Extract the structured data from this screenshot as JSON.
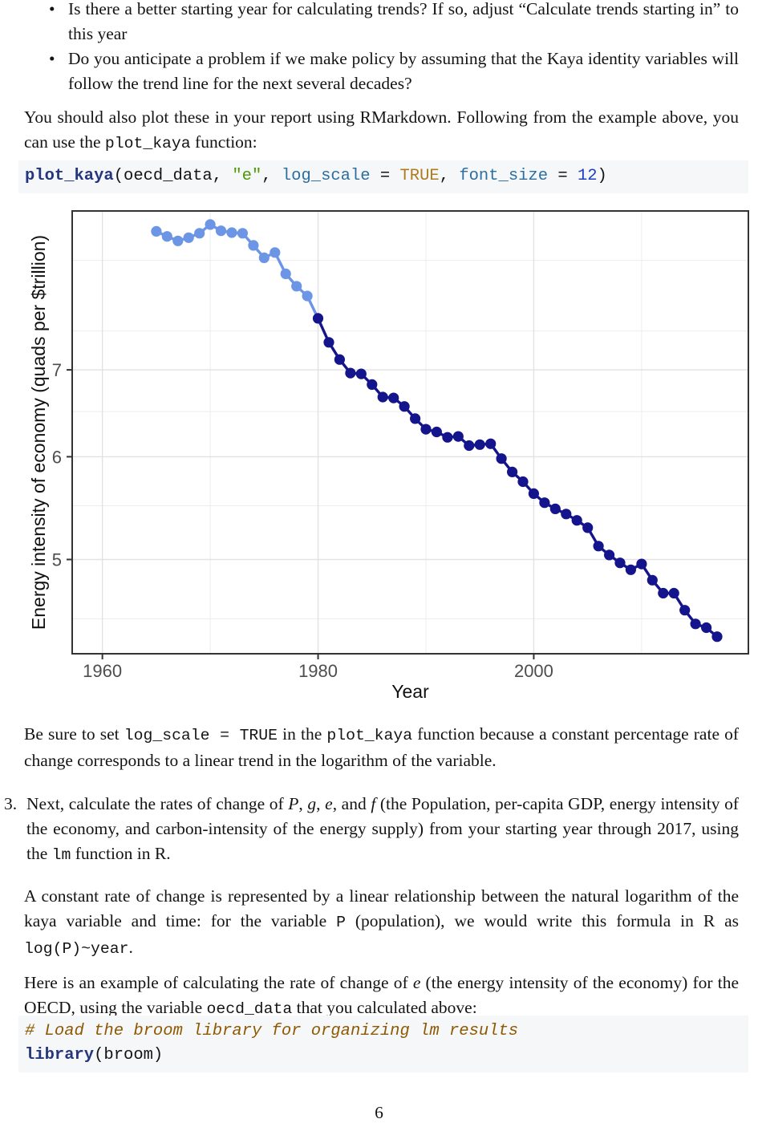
{
  "page": {
    "background": "#ffffff",
    "text_color": "#141414",
    "page_number": "6"
  },
  "bullets": [
    {
      "segments": [
        {
          "t": "Is there a better starting year for calculating trends?  If so, adjust “Calculate trends starting in” to this year"
        }
      ]
    },
    {
      "segments": [
        {
          "t": "Do you anticipate a problem if we make policy by assuming that the Kaya identity variables will follow the trend line for the next several decades?"
        }
      ]
    }
  ],
  "para_plot": {
    "segments": [
      {
        "t": "You should also plot these in your report using RMarkdown. Following from the example above, you can use the "
      },
      {
        "t": "plot_kaya",
        "code": true
      },
      {
        "t": " function:"
      }
    ]
  },
  "code_block_1": {
    "background": "#f6f7f8",
    "lines": [
      [
        {
          "t": "plot_kaya",
          "cls": "fu"
        },
        {
          "t": "(oecd_data, "
        },
        {
          "t": "\"e\"",
          "cls": "st"
        },
        {
          "t": ", "
        },
        {
          "t": "log_scale",
          "cls": "at"
        },
        {
          "t": " = "
        },
        {
          "t": "TRUE",
          "cls": "cn"
        },
        {
          "t": ", "
        },
        {
          "t": "font_size",
          "cls": "at"
        },
        {
          "t": " = "
        },
        {
          "t": "12",
          "cls": "dv"
        },
        {
          "t": ")"
        }
      ]
    ]
  },
  "para_besure": {
    "segments": [
      {
        "t": "Be sure to set "
      },
      {
        "t": "log_scale = TRUE",
        "code": true
      },
      {
        "t": " in the "
      },
      {
        "t": "plot_kaya",
        "code": true
      },
      {
        "t": " function because a constant percentage rate of change corresponds to a linear trend in the logarithm of the variable."
      }
    ]
  },
  "item3": {
    "number": "3.",
    "segments": [
      {
        "t": "Next, calculate the rates of change of "
      },
      {
        "t": "P",
        "it": true
      },
      {
        "t": ", "
      },
      {
        "t": "g",
        "it": true
      },
      {
        "t": ", "
      },
      {
        "t": "e",
        "it": true
      },
      {
        "t": ", and "
      },
      {
        "t": "f",
        "it": true
      },
      {
        "t": " (the Population, per-capita GDP, energy intensity of the economy, and carbon-intensity of the energy supply) from your starting year through 2017, using the "
      },
      {
        "t": "lm",
        "code": true
      },
      {
        "t": " function in R."
      }
    ]
  },
  "para_constant": {
    "segments": [
      {
        "t": "A constant rate of change is represented by a linear relationship between the natural logarithm of the kaya variable and time:  for the variable "
      },
      {
        "t": "P",
        "code": true
      },
      {
        "t": " (population), we would write this formula in R as "
      },
      {
        "t": "log(P)~year",
        "code": true
      },
      {
        "t": "."
      }
    ]
  },
  "para_example": {
    "segments": [
      {
        "t": "Here is an example of calculating the rate of change of "
      },
      {
        "t": "e",
        "it": true
      },
      {
        "t": " (the energy intensity of the economy) for the OECD, using the variable "
      },
      {
        "t": "oecd_data",
        "code": true
      },
      {
        "t": " that you calculated above:"
      }
    ]
  },
  "code_block_2": {
    "background": "#f6f7f8",
    "lines": [
      [
        {
          "t": "# Load the broom library for organizing lm results",
          "cls": "co"
        }
      ],
      [
        {
          "t": "library",
          "cls": "fu"
        },
        {
          "t": "(broom)"
        }
      ]
    ]
  },
  "code_colors": {
    "function": "#25367E",
    "string": "#4E9A06",
    "argument": "#2B6EA1",
    "constant": "#AD7C20",
    "number": "#2040C0",
    "comment": "#8F5902"
  },
  "chart_data": {
    "type": "scatter",
    "title": "",
    "xlabel": "Year",
    "ylabel": "Energy intensity of economy (quads per $trillion)",
    "y_scale": "log",
    "grid": true,
    "x_ticks": [
      1960,
      1980,
      2000
    ],
    "x_minor_gridlines": [
      1970,
      1990,
      2010
    ],
    "y_ticks": [
      7,
      6,
      5
    ],
    "y_minor_gridlines": [
      8.5,
      7.5,
      6.5,
      5.5,
      4.5
    ],
    "x_range": [
      1957.2,
      2019.9
    ],
    "y_range": [
      4.23,
      9.28
    ],
    "trend_start_year": 1980,
    "series": [
      {
        "name": "before-trend-start",
        "color": "#6C95E6"
      },
      {
        "name": "trend-years-1980-2017",
        "color": "#14148C"
      }
    ],
    "axis_tick_label_color": "#4d4d4d",
    "axis_title_color": "#111111",
    "border_color": "#333333",
    "major_grid_color": "#E2E2E2",
    "minor_grid_color": "#EDEDED",
    "years": [
      1965,
      1966,
      1967,
      1968,
      1969,
      1970,
      1971,
      1972,
      1973,
      1974,
      1975,
      1976,
      1977,
      1978,
      1979,
      1980,
      1981,
      1982,
      1983,
      1984,
      1985,
      1986,
      1987,
      1988,
      1989,
      1990,
      1991,
      1992,
      1993,
      1994,
      1995,
      1996,
      1997,
      1998,
      1999,
      2000,
      2001,
      2002,
      2003,
      2004,
      2005,
      2006,
      2007,
      2008,
      2009,
      2010,
      2011,
      2012,
      2013,
      2014,
      2015,
      2016,
      2017
    ],
    "values": [
      8.95,
      8.87,
      8.8,
      8.85,
      8.92,
      9.06,
      8.96,
      8.93,
      8.92,
      8.73,
      8.54,
      8.62,
      8.3,
      8.12,
      7.98,
      7.67,
      7.35,
      7.13,
      6.96,
      6.95,
      6.82,
      6.67,
      6.66,
      6.56,
      6.42,
      6.3,
      6.27,
      6.21,
      6.22,
      6.12,
      6.13,
      6.14,
      5.98,
      5.84,
      5.74,
      5.62,
      5.53,
      5.47,
      5.42,
      5.36,
      5.29,
      5.12,
      5.04,
      4.97,
      4.91,
      4.96,
      4.82,
      4.71,
      4.71,
      4.57,
      4.46,
      4.43,
      4.36
    ]
  }
}
